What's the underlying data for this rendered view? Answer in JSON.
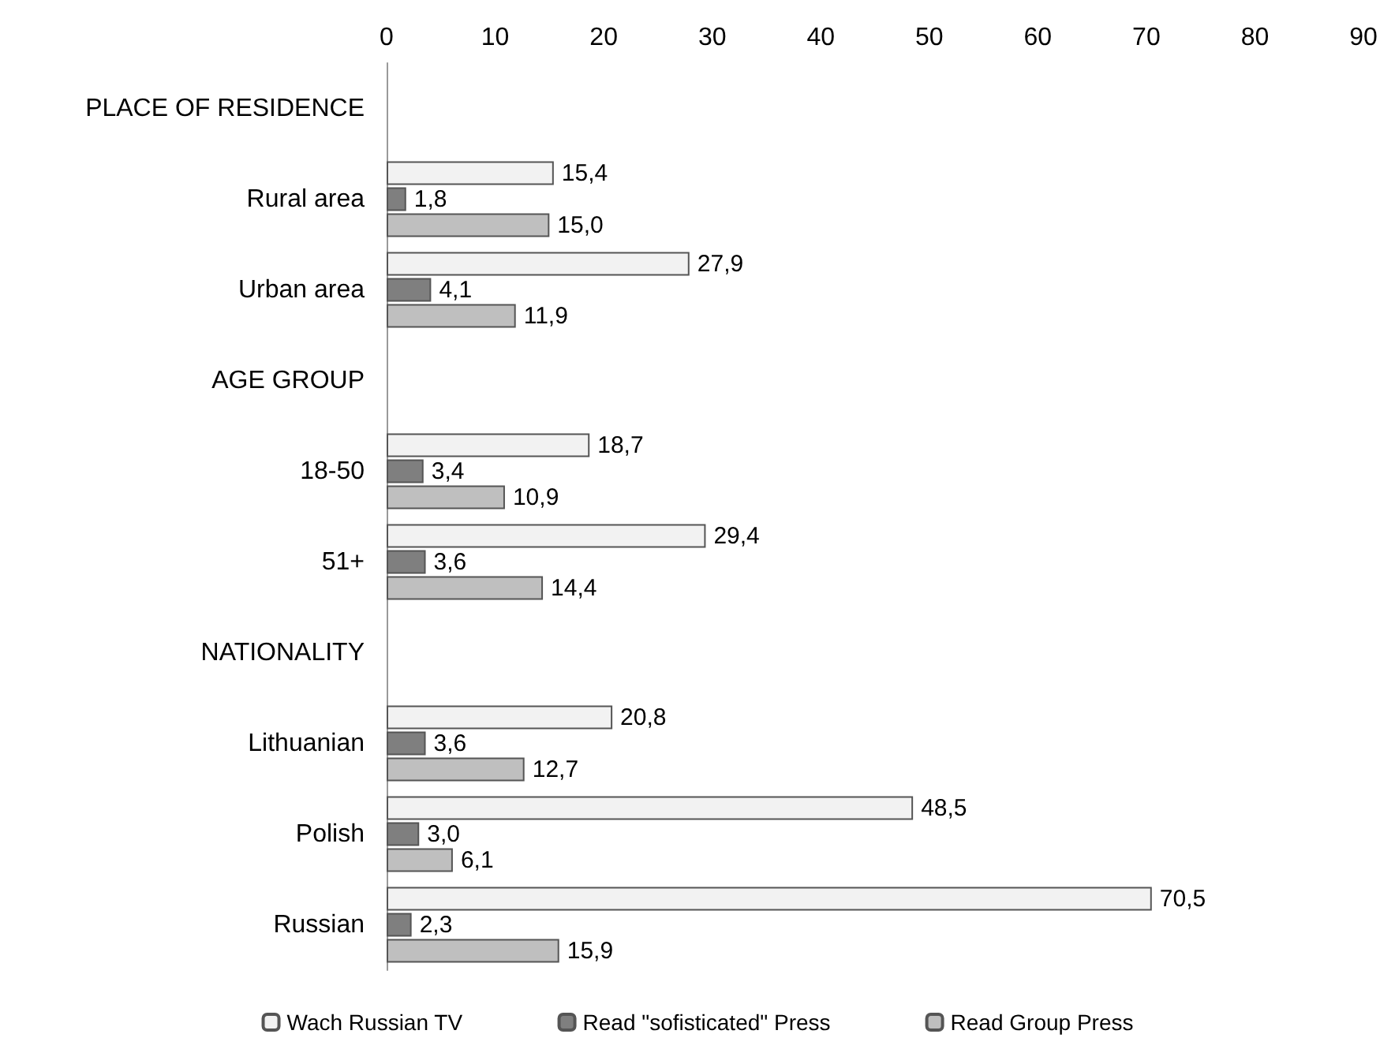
{
  "chart_data": {
    "type": "bar",
    "orientation": "horizontal",
    "categories": [
      "PLACE OF RESIDENCE",
      "Rural area",
      "Urban area",
      "AGE GROUP",
      "18-50",
      "51+",
      "NATIONALITY",
      "Lithuanian",
      "Polish",
      "Russian"
    ],
    "series": [
      {
        "name": "Wach Russian TV",
        "color": "#f2f2f2",
        "values": [
          null,
          15.4,
          27.9,
          null,
          18.7,
          29.4,
          null,
          20.8,
          48.5,
          70.5
        ],
        "value_labels": [
          null,
          "15,4",
          "27,9",
          null,
          "18,7",
          "29,4",
          null,
          "20,8",
          "48,5",
          "70,5"
        ]
      },
      {
        "name": "Read \"sofisticated\" Press",
        "color": "#7f7f7f",
        "values": [
          null,
          1.8,
          4.1,
          null,
          3.4,
          3.6,
          null,
          3.6,
          3.0,
          2.3
        ],
        "value_labels": [
          null,
          "1,8",
          "4,1",
          null,
          "3,4",
          "3,6",
          null,
          "3,6",
          "3,0",
          "2,3"
        ]
      },
      {
        "name": "Read Group Press",
        "color": "#bfbfbf",
        "values": [
          null,
          15.0,
          11.9,
          null,
          10.9,
          14.4,
          null,
          12.7,
          6.1,
          15.9
        ],
        "value_labels": [
          null,
          "15,0",
          "11,9",
          null,
          "10,9",
          "14,4",
          null,
          "12,7",
          "6,1",
          "15,9"
        ]
      }
    ],
    "xlim": [
      0,
      90
    ],
    "xticks": [
      0,
      10,
      20,
      30,
      40,
      50,
      60,
      70,
      80,
      90
    ],
    "grid": false,
    "legend": "bottom"
  }
}
